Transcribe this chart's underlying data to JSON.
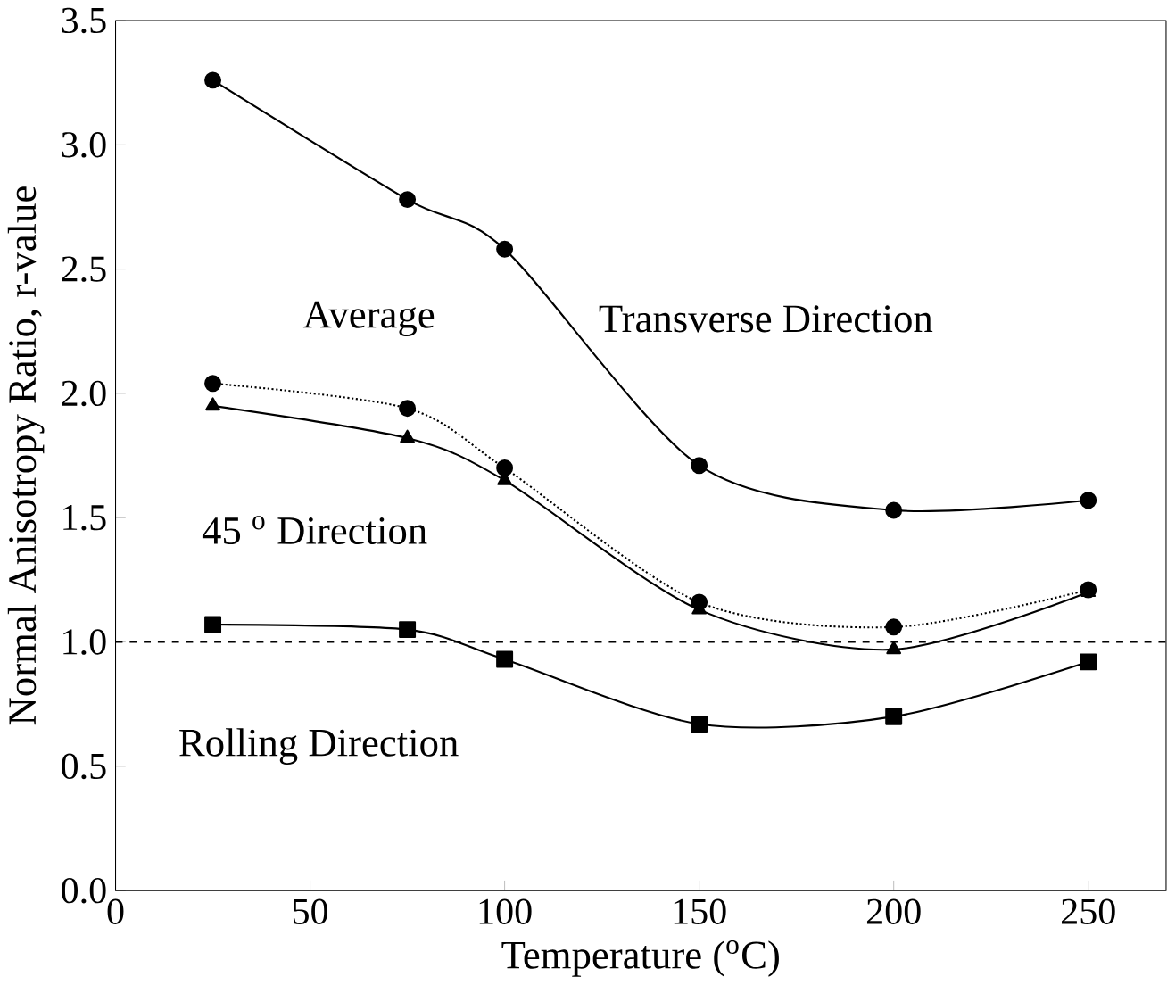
{
  "chart_data": {
    "type": "line",
    "xlabel": "Temperature ($^{o}$C)",
    "ylabel": "Normal Anisotropy Ratio, r-value",
    "x": [
      25,
      75,
      100,
      150,
      200,
      250
    ],
    "series": [
      {
        "name": "Transverse Direction",
        "color": "#000000",
        "marker": "circle",
        "line_style": "solid",
        "values": [
          3.26,
          2.78,
          2.58,
          1.71,
          1.53,
          1.57
        ]
      },
      {
        "name": "Average",
        "color": "#000000",
        "marker": "circle",
        "line_style": "dotted",
        "values": [
          2.04,
          1.94,
          1.7,
          1.16,
          1.06,
          1.21
        ]
      },
      {
        "name": "45 $^{o}$ Direction",
        "color": "#000000",
        "marker": "triangle",
        "line_style": "solid",
        "values": [
          1.95,
          1.82,
          1.65,
          1.13,
          0.97,
          1.2
        ]
      },
      {
        "name": "Rolling Direction",
        "color": "#000000",
        "marker": "square",
        "line_style": "solid",
        "values": [
          1.07,
          1.05,
          0.93,
          0.67,
          0.7,
          0.92
        ]
      }
    ],
    "ref_lines": [
      {
        "axis": "y",
        "value": 1.0,
        "line_style": "dashed"
      }
    ],
    "xlim": [
      0,
      270
    ],
    "ylim": [
      0,
      3.5
    ],
    "xticks": [
      0,
      50,
      100,
      150,
      200,
      250
    ],
    "yticks": [
      {
        "value": 0,
        "label": "0.0"
      },
      {
        "value": 0.5,
        "label": "0.5"
      },
      {
        "value": 1,
        "label": "1.0"
      },
      {
        "value": 1.5,
        "label": "1.5"
      },
      {
        "value": 2,
        "label": "2.0"
      },
      {
        "value": 2.5,
        "label": "2.5"
      },
      {
        "value": 3,
        "label": "3.0"
      },
      {
        "value": 3.5,
        "label": "3.5"
      }
    ],
    "grid": false,
    "legend": false
  }
}
